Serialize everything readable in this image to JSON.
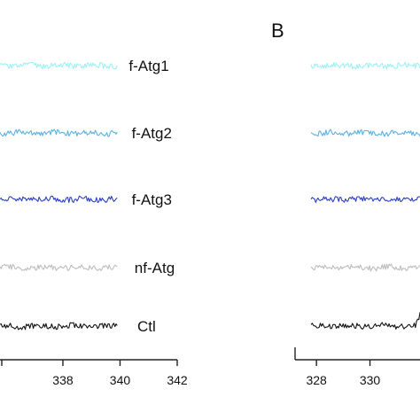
{
  "chart_data": [
    {
      "type": "line",
      "panel": "",
      "x_ticks": [
        338,
        340,
        342
      ],
      "xlim": [
        335.8,
        342
      ],
      "x_start": 335.8,
      "x_end": 339.9,
      "series": [
        {
          "name": "f-Atg1",
          "color": "#9ef0f2",
          "offset": 4,
          "label_x": 339.5
        },
        {
          "name": "f-Atg2",
          "color": "#59b2e6",
          "offset": 3,
          "label_x": 339.6
        },
        {
          "name": "f-Atg3",
          "color": "#2c3fc4",
          "offset": 2,
          "label_x": 339.6
        },
        {
          "name": "nf-Atg",
          "color": "#bdbdbd",
          "offset": 1,
          "label_x": 339.7
        },
        {
          "name": "Ctl",
          "color": "#111111",
          "offset": 0,
          "label_x": 339.8
        }
      ]
    },
    {
      "type": "line",
      "panel": "B",
      "x_ticks": [
        328,
        330
      ],
      "xlim": [
        327.2,
        332.4
      ],
      "x_start": 327.8,
      "x_end": 332.4,
      "series": [
        {
          "name": "f-Atg1",
          "color": "#9ef0f2",
          "offset": 4
        },
        {
          "name": "f-Atg2",
          "color": "#59b2e6",
          "offset": 3
        },
        {
          "name": "f-Atg3",
          "color": "#2c3fc4",
          "offset": 2
        },
        {
          "name": "nf-Atg",
          "color": "#bdbdbd",
          "offset": 1
        },
        {
          "name": "Ctl",
          "color": "#111111",
          "offset": 0,
          "peak_x": 331.9
        }
      ]
    }
  ]
}
